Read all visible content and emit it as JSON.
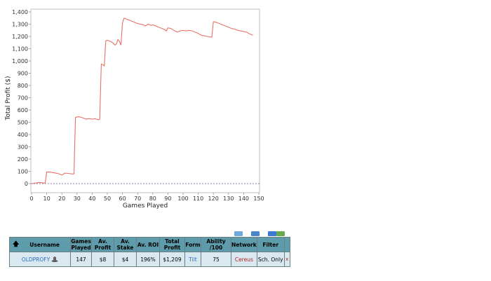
{
  "chart_data": {
    "type": "line",
    "title": "",
    "xlabel": "Games Played",
    "ylabel": "Total Profit ($)",
    "xlim": [
      0,
      150
    ],
    "ylim": [
      0,
      1400
    ],
    "x_ticks": [
      0,
      10,
      20,
      30,
      40,
      50,
      60,
      70,
      80,
      90,
      100,
      110,
      120,
      130,
      140,
      150
    ],
    "y_ticks": [
      0,
      100,
      200,
      300,
      400,
      500,
      600,
      700,
      800,
      900,
      1000,
      1100,
      1200,
      1300,
      1400
    ],
    "y_tick_labels": [
      "0",
      "100",
      "200",
      "300",
      "400",
      "500",
      "600",
      "700",
      "800",
      "900",
      "1,000",
      "1,100",
      "1,200",
      "1,300",
      "1,400"
    ],
    "grid": false,
    "zero_line": true,
    "line_color": "#e8726a",
    "series": [
      {
        "x": [
          0,
          3,
          5,
          8,
          9,
          10,
          12,
          14,
          16,
          18,
          20,
          22,
          24,
          26,
          27,
          28,
          29,
          31,
          33,
          35,
          36,
          38,
          40,
          42,
          44,
          45,
          46,
          47,
          48,
          49,
          50,
          52,
          54,
          55,
          56,
          57,
          58,
          59,
          60,
          61,
          63,
          66,
          68,
          70,
          72,
          74,
          75,
          77,
          79,
          80,
          82,
          84,
          86,
          88,
          89,
          90,
          92,
          94,
          96,
          98,
          100,
          102,
          104,
          106,
          108,
          110,
          112,
          114,
          116,
          118,
          119,
          120,
          122,
          124,
          126,
          128,
          130,
          132,
          134,
          136,
          138,
          140,
          142,
          144,
          146
        ],
        "y": [
          0,
          5,
          10,
          5,
          5,
          95,
          95,
          90,
          85,
          80,
          70,
          85,
          83,
          80,
          78,
          80,
          540,
          545,
          540,
          530,
          525,
          530,
          525,
          530,
          520,
          525,
          975,
          970,
          960,
          1165,
          1170,
          1160,
          1145,
          1130,
          1140,
          1175,
          1160,
          1130,
          1310,
          1350,
          1340,
          1325,
          1315,
          1305,
          1300,
          1295,
          1285,
          1300,
          1290,
          1295,
          1285,
          1275,
          1265,
          1255,
          1245,
          1270,
          1265,
          1250,
          1235,
          1245,
          1250,
          1245,
          1250,
          1245,
          1235,
          1225,
          1210,
          1205,
          1200,
          1195,
          1195,
          1320,
          1315,
          1305,
          1295,
          1285,
          1275,
          1265,
          1260,
          1250,
          1245,
          1240,
          1235,
          1220,
          1210
        ]
      }
    ]
  },
  "toolbar": {
    "icon_colors": [
      "#6fa8dc",
      "#4a86c8",
      "#3c78d8",
      "#6aa84f"
    ]
  },
  "table": {
    "columns": {
      "username": "Username",
      "games_played": "Games Played",
      "av_profit": "Av. Profit",
      "av_stake": "Av. Stake",
      "av_roi": "Av. ROI",
      "total_profit": "Total Profit",
      "form": "Form",
      "ability": "Ability /100",
      "network": "Network",
      "filter": "Filter"
    },
    "row": {
      "username": "OLDPROFY",
      "games_played": "147",
      "av_profit": "$8",
      "av_stake": "$4",
      "av_roi": "196%",
      "total_profit": "$1,209",
      "form": "Tilt",
      "ability": "75",
      "network": "Cereus",
      "filter": "Sch. Only",
      "close": "x"
    }
  }
}
